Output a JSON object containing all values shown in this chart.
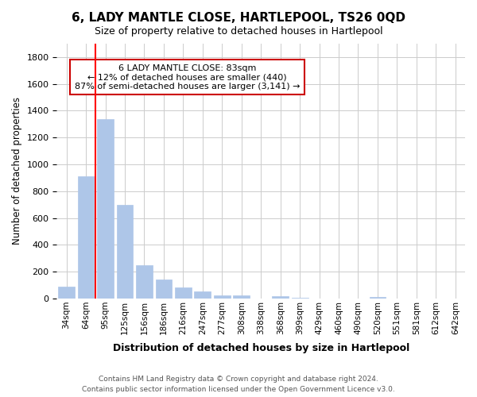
{
  "title": "6, LADY MANTLE CLOSE, HARTLEPOOL, TS26 0QD",
  "subtitle": "Size of property relative to detached houses in Hartlepool",
  "xlabel": "Distribution of detached houses by size in Hartlepool",
  "ylabel": "Number of detached properties",
  "bar_labels": [
    "34sqm",
    "64sqm",
    "95sqm",
    "125sqm",
    "156sqm",
    "186sqm",
    "216sqm",
    "247sqm",
    "277sqm",
    "308sqm",
    "338sqm",
    "368sqm",
    "399sqm",
    "429sqm",
    "460sqm",
    "490sqm",
    "520sqm",
    "551sqm",
    "581sqm",
    "612sqm",
    "642sqm"
  ],
  "bar_values": [
    90,
    910,
    1340,
    700,
    250,
    140,
    80,
    55,
    25,
    25,
    0,
    15,
    5,
    0,
    0,
    0,
    10,
    0,
    0,
    0,
    0
  ],
  "bar_color": "#aec6e8",
  "vline_x": 1,
  "vline_color": "red",
  "ylim": [
    0,
    1900
  ],
  "yticks": [
    0,
    200,
    400,
    600,
    800,
    1000,
    1200,
    1400,
    1600,
    1800
  ],
  "annotation_text": "6 LADY MANTLE CLOSE: 83sqm\n← 12% of detached houses are smaller (440)\n87% of semi-detached houses are larger (3,141) →",
  "annotation_box_color": "#ffffff",
  "annotation_box_edgecolor": "#cc0000",
  "footer_line1": "Contains HM Land Registry data © Crown copyright and database right 2024.",
  "footer_line2": "Contains public sector information licensed under the Open Government Licence v3.0.",
  "background_color": "#ffffff",
  "grid_color": "#cccccc"
}
